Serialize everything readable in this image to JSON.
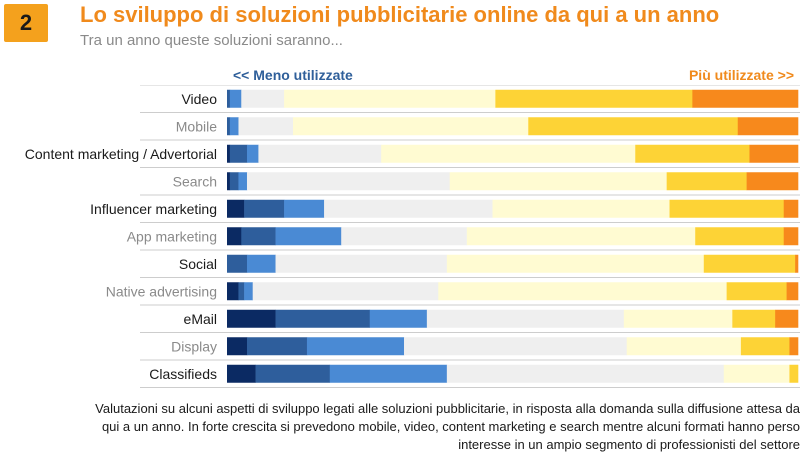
{
  "header": {
    "badge": "2",
    "title": "Lo sviluppo di soluzioni pubblicitarie online da qui a un anno",
    "subtitle": "Tra un anno queste soluzioni saranno..."
  },
  "legend": {
    "less": "<< Meno utilizzate",
    "more": "Più utilizzate >>"
  },
  "caption": "Valutazioni su alcuni aspetti di sviluppo legati alle soluzioni pubblicitarie, in risposta alla domanda sulla diffusione attesa da qui a un anno. In forte crescita si prevedono mobile, video, content marketing e search mentre alcuni formati hanno perso interesse in un ampio segmento di professionisti del settore",
  "chart_data": {
    "type": "bar",
    "stacked": "100%",
    "orientation": "horizontal",
    "xlim": [
      0,
      100
    ],
    "grid": true,
    "colors": [
      "#0b2a63",
      "#2e5e9c",
      "#4a8ad4",
      "#efefef",
      "#fffbd2",
      "#fdd336",
      "#f7891c"
    ],
    "categories": [
      "Video",
      "Mobile",
      "Content marketing / Advertorial",
      "Search",
      "Influencer marketing",
      "App marketing",
      "Social",
      "Native advertising",
      "eMail",
      "Display",
      "Classifieds"
    ],
    "category_styles": [
      "strong",
      "muted",
      "strong",
      "muted",
      "strong",
      "muted",
      "strong",
      "muted",
      "strong",
      "muted",
      "strong"
    ],
    "values": [
      [
        0,
        0.5,
        2,
        7.5,
        37,
        34.5,
        18.5
      ],
      [
        0,
        0.5,
        1.5,
        9.5,
        41,
        36.5,
        10.5
      ],
      [
        0.5,
        3,
        2,
        21.5,
        44.5,
        20,
        8.5
      ],
      [
        0.5,
        1.5,
        1.5,
        35.5,
        38,
        14,
        9
      ],
      [
        3,
        7,
        7,
        29.5,
        31,
        20,
        2.5
      ],
      [
        2.5,
        6,
        11.5,
        22,
        40,
        15.5,
        2.5
      ],
      [
        0,
        3.5,
        5,
        30,
        45,
        16,
        0.5
      ],
      [
        2,
        1,
        1.5,
        32.5,
        50.5,
        10.5,
        2
      ],
      [
        8.5,
        16.5,
        10,
        34.5,
        19,
        7.5,
        4
      ],
      [
        3.5,
        10.5,
        17,
        39,
        20,
        8.5,
        1.5
      ],
      [
        5,
        13,
        20.5,
        48.5,
        11.5,
        1.5,
        0
      ]
    ]
  }
}
